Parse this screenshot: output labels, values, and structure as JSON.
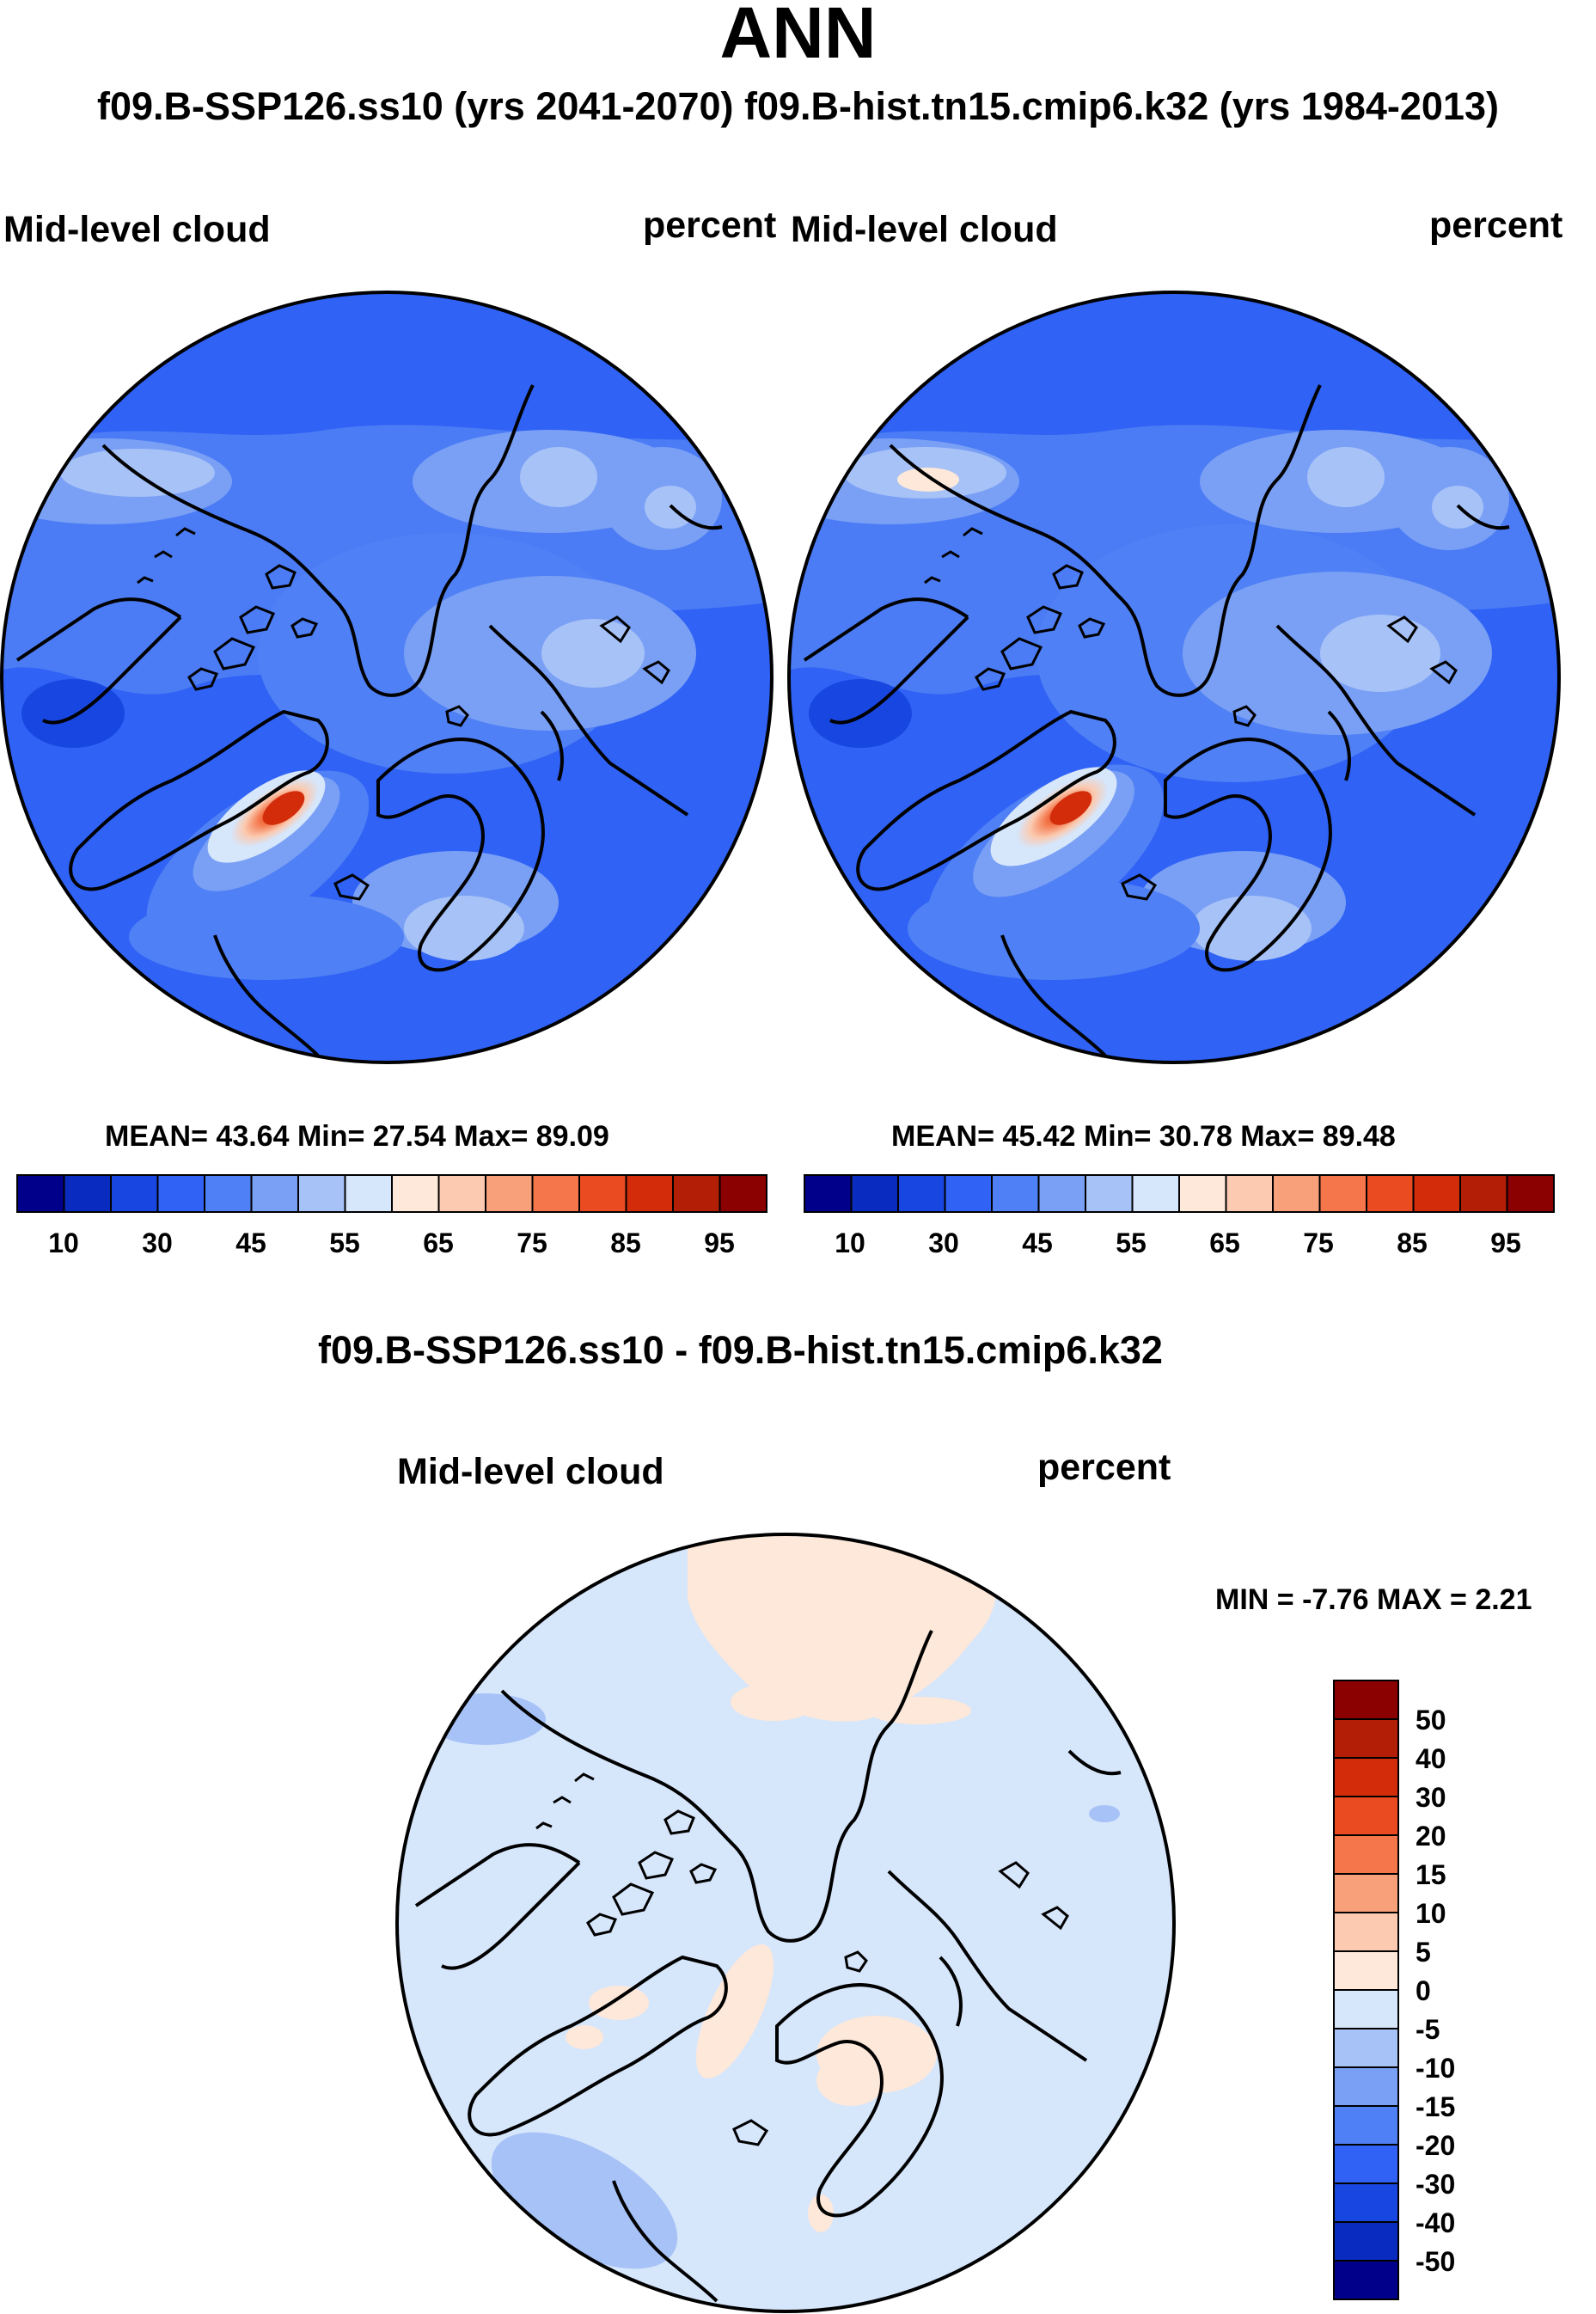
{
  "title": "ANN",
  "subtitle": "f09.B-SSP126.ss10 (yrs 2041-2070)  f09.B-hist.tn15.cmip6.k32 (yrs 1984-2013)",
  "panels": [
    {
      "variable": "Mid-level cloud",
      "units": "percent",
      "stats": "MEAN=  43.64  Min=  27.54  Max=  89.09",
      "colorbar_ticks": [
        "10",
        "30",
        "45",
        "55",
        "65",
        "75",
        "85",
        "95"
      ]
    },
    {
      "variable": "Mid-level cloud",
      "units": "percent",
      "stats": "MEAN=  45.42  Min=  30.78  Max=  89.48",
      "colorbar_ticks": [
        "10",
        "30",
        "45",
        "55",
        "65",
        "75",
        "85",
        "95"
      ]
    }
  ],
  "diff": {
    "title": "f09.B-SSP126.ss10 - f09.B-hist.tn15.cmip6.k32",
    "variable": "Mid-level cloud",
    "units": "percent",
    "minmax": "MIN =  -7.76 MAX =   2.21",
    "colorbar_ticks": [
      "50",
      "40",
      "30",
      "20",
      "15",
      "10",
      "5",
      "0",
      "-5",
      "-10",
      "-15",
      "-20",
      "-30",
      "-40",
      "-50"
    ]
  },
  "colors": {
    "abs_scale": [
      "#00008b",
      "#0a2bc0",
      "#1846e0",
      "#2f62f5",
      "#4f80f5",
      "#7aa0f5",
      "#a7c2f7",
      "#d6e6fb",
      "#fde8da",
      "#fbcab0",
      "#f8a07a",
      "#f4764a",
      "#eb4b21",
      "#d22c0b",
      "#b31f06",
      "#8b0000"
    ],
    "diff_scale": [
      "#00008b",
      "#0a2bc0",
      "#1846e0",
      "#2f62f5",
      "#4f80f5",
      "#7aa0f5",
      "#a7c2f7",
      "#d6e6fb",
      "#fde8da",
      "#fbcab0",
      "#f8a07a",
      "#f4764a",
      "#eb4b21",
      "#d22c0b",
      "#b31f06",
      "#8b0000"
    ]
  }
}
